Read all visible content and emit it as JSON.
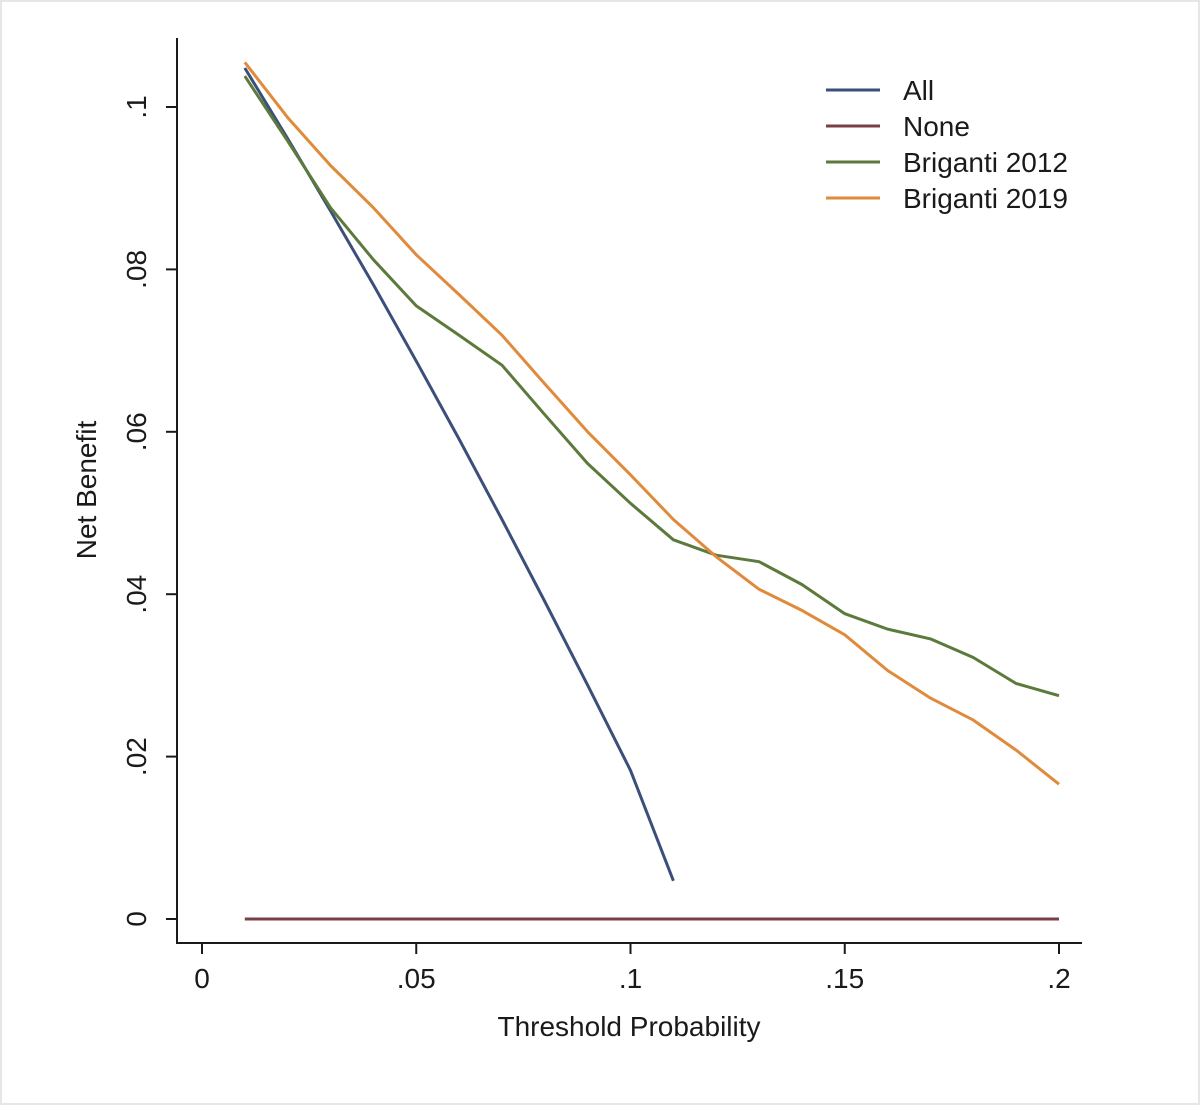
{
  "chart_data": {
    "type": "line",
    "title": "",
    "xlabel": "Threshold Probability",
    "ylabel": "Net Benefit",
    "xlim": [
      -0.006,
      0.205
    ],
    "ylim": [
      -0.003,
      0.1085
    ],
    "grid": false,
    "legend_position": "top-right",
    "x_ticks": [
      {
        "value": 0,
        "label": "0"
      },
      {
        "value": 0.05,
        "label": ".05"
      },
      {
        "value": 0.1,
        "label": ".1"
      },
      {
        "value": 0.15,
        "label": ".15"
      },
      {
        "value": 0.2,
        "label": ".2"
      }
    ],
    "y_ticks": [
      {
        "value": 0,
        "label": "0"
      },
      {
        "value": 0.02,
        "label": ".02"
      },
      {
        "value": 0.04,
        "label": ".04"
      },
      {
        "value": 0.06,
        "label": ".06"
      },
      {
        "value": 0.08,
        "label": ".08"
      },
      {
        "value": 0.1,
        "label": ".1"
      }
    ],
    "series": [
      {
        "name": "All",
        "color": "#3b4f7a",
        "x": [
          0.01,
          0.02,
          0.03,
          0.04,
          0.05,
          0.06,
          0.07,
          0.08,
          0.09,
          0.1,
          0.11
        ],
        "y": [
          0.1048,
          0.0961,
          0.0872,
          0.0781,
          0.0687,
          0.0591,
          0.0492,
          0.0391,
          0.0288,
          0.0183,
          0.0047
        ]
      },
      {
        "name": "None",
        "color": "#7a3f45",
        "x": [
          0.01,
          0.2
        ],
        "y": [
          0,
          0
        ]
      },
      {
        "name": "Briganti 2012",
        "color": "#5b7a3c",
        "x": [
          0.01,
          0.02,
          0.03,
          0.04,
          0.05,
          0.06,
          0.07,
          0.08,
          0.09,
          0.1,
          0.11,
          0.12,
          0.13,
          0.14,
          0.15,
          0.16,
          0.17,
          0.18,
          0.19,
          0.2
        ],
        "y": [
          0.1038,
          0.0958,
          0.0876,
          0.0812,
          0.0755,
          0.0719,
          0.0682,
          0.0621,
          0.0561,
          0.0512,
          0.0467,
          0.0448,
          0.044,
          0.0412,
          0.0376,
          0.0357,
          0.0345,
          0.0322,
          0.029,
          0.0275
        ]
      },
      {
        "name": "Briganti 2019",
        "color": "#e08a3c",
        "x": [
          0.01,
          0.02,
          0.03,
          0.04,
          0.05,
          0.06,
          0.07,
          0.08,
          0.09,
          0.1,
          0.11,
          0.12,
          0.13,
          0.14,
          0.15,
          0.16,
          0.17,
          0.18,
          0.19,
          0.2
        ],
        "y": [
          0.1055,
          0.0987,
          0.0928,
          0.0876,
          0.0818,
          0.0769,
          0.0719,
          0.0659,
          0.06,
          0.0547,
          0.0492,
          0.0446,
          0.0406,
          0.038,
          0.035,
          0.0306,
          0.0272,
          0.0245,
          0.0208,
          0.0166
        ]
      }
    ]
  }
}
